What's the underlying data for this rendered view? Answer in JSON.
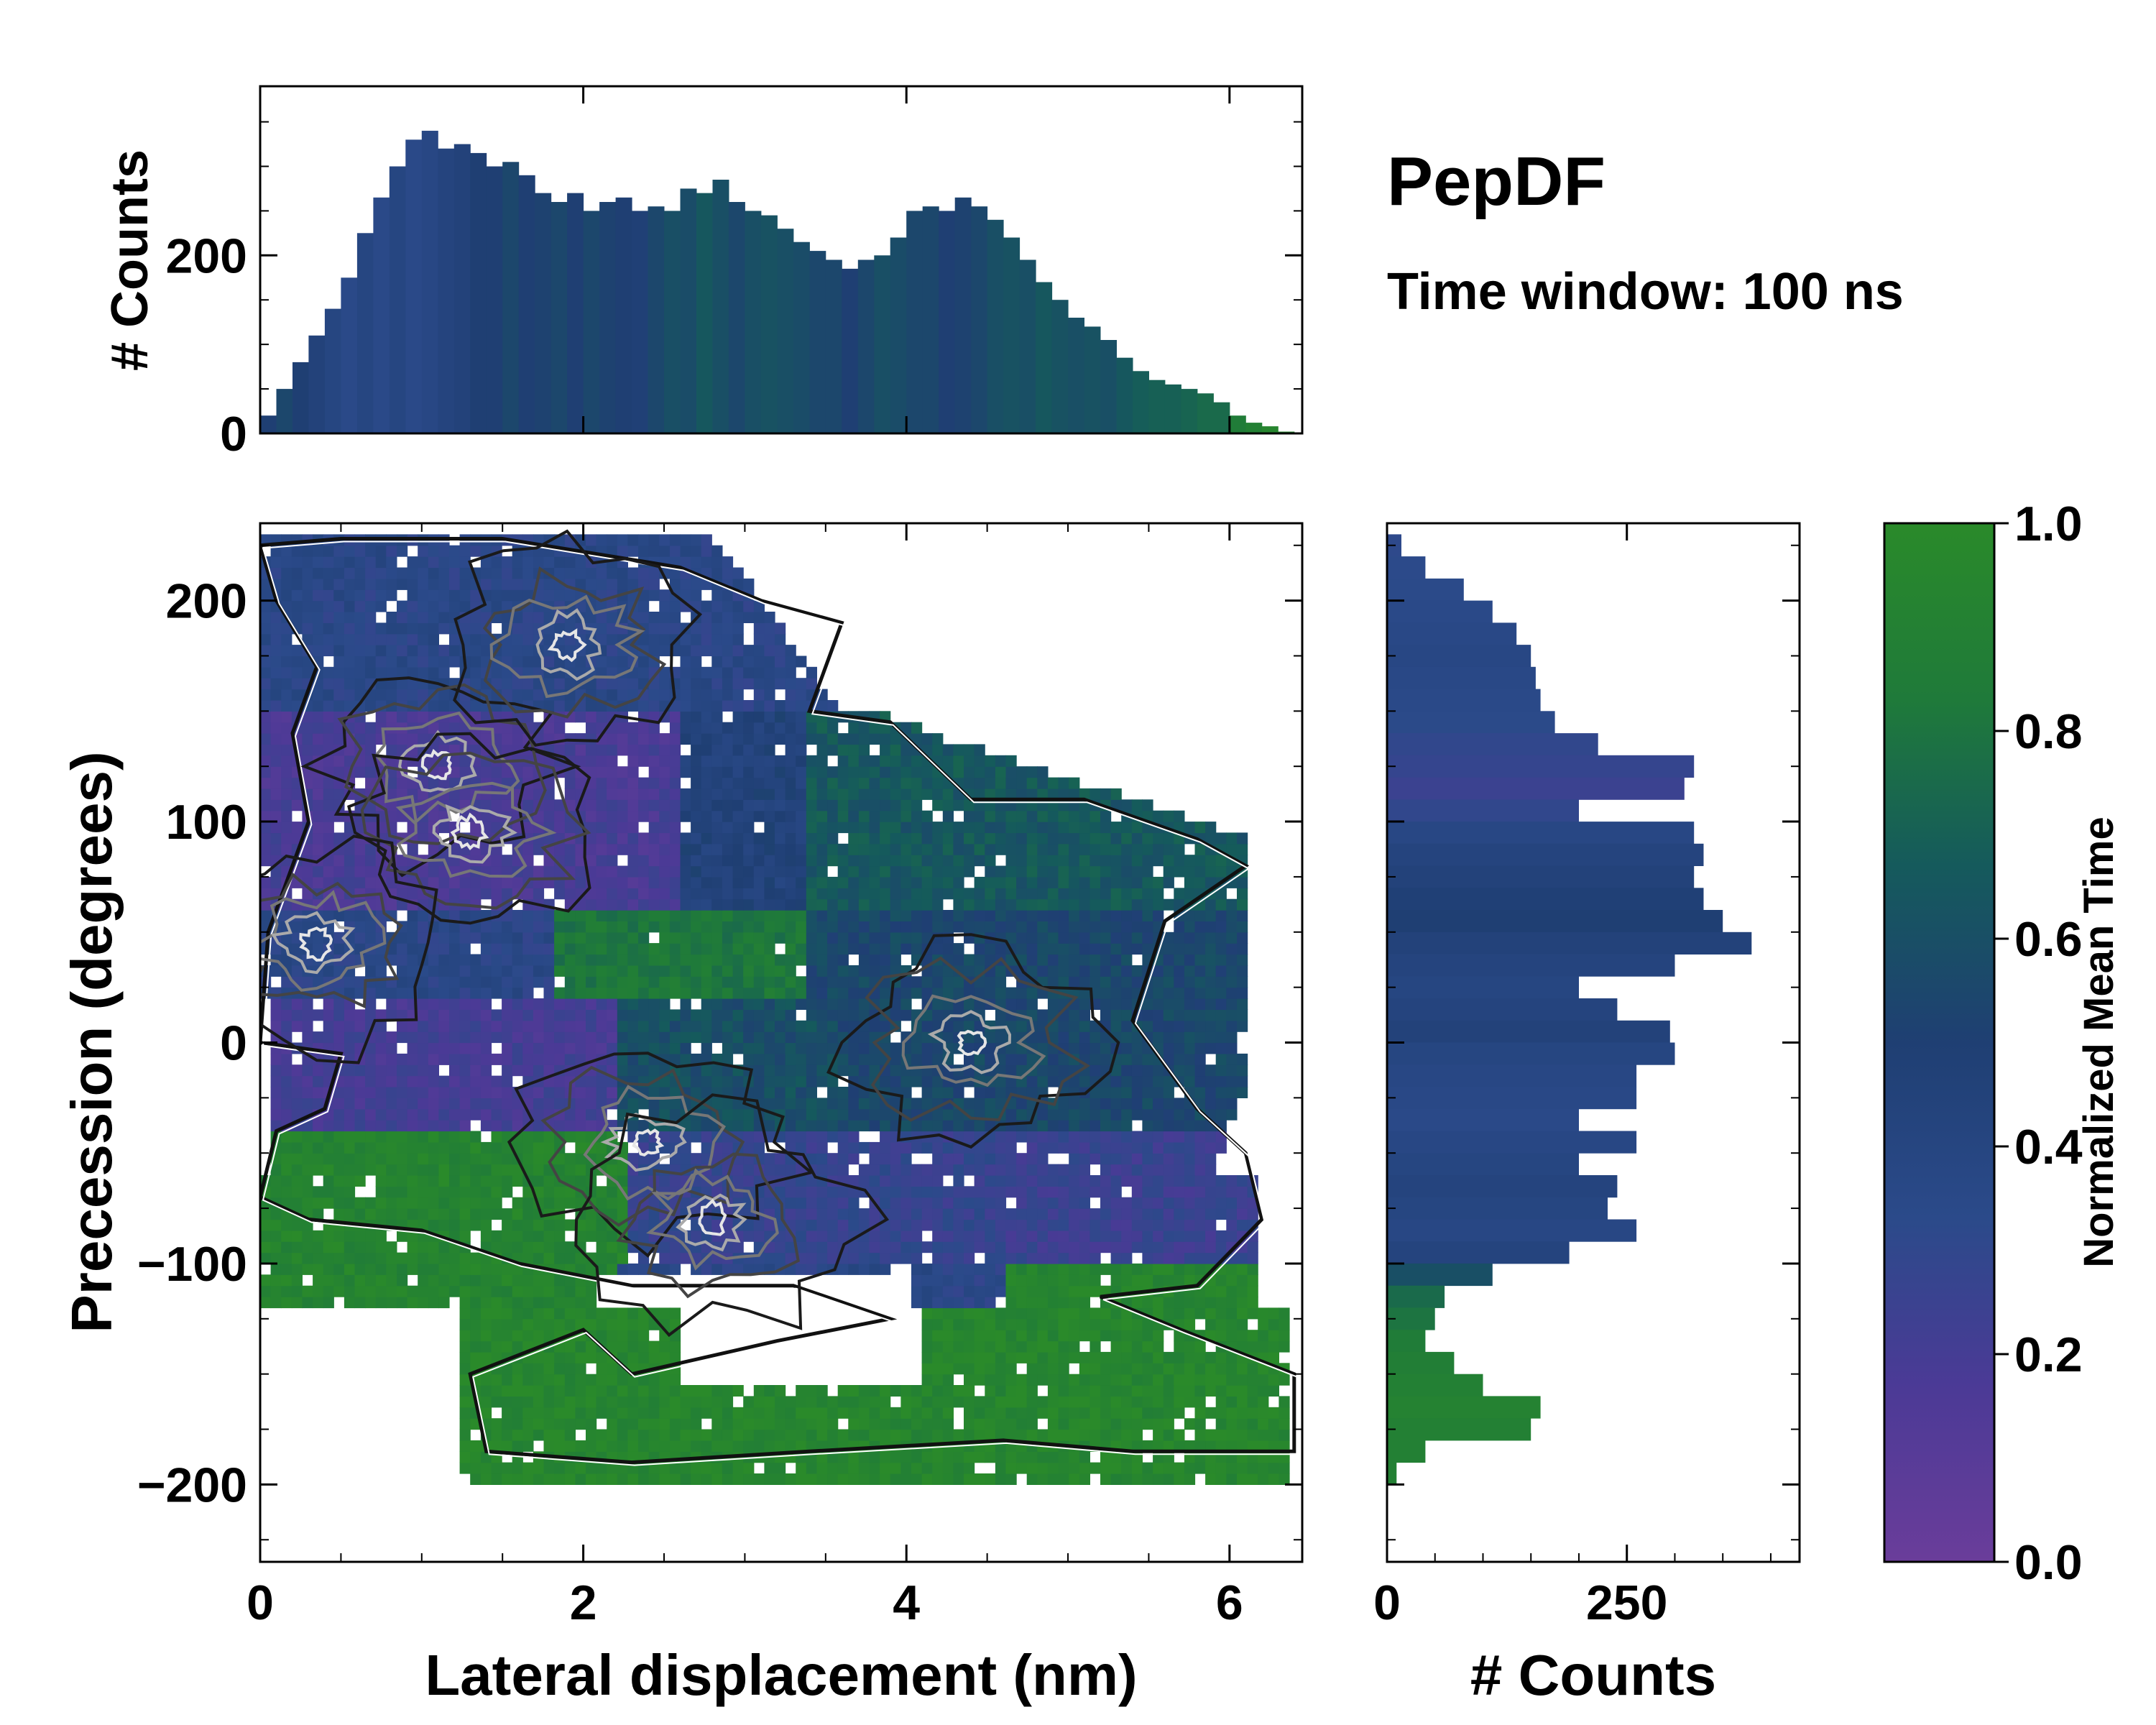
{
  "figure": {
    "title": "PepDF",
    "subtitle": "Time window: 100 ns"
  },
  "chart_data": [
    {
      "id": "joint",
      "type": "heatmap",
      "xlabel": "Lateral displacement (nm)",
      "ylabel": "Precession (degrees)",
      "xlim": [
        0,
        6.45
      ],
      "ylim": [
        -235,
        235
      ],
      "xticks": [
        0,
        2,
        4,
        6
      ],
      "yticks": [
        -200,
        -100,
        0,
        100,
        200
      ],
      "ytick_labels": [
        "−200",
        "−100",
        "0",
        "100",
        "200"
      ],
      "colorbar": {
        "label": "Normalized Mean Time",
        "range": [
          0,
          1
        ],
        "ticks": [
          0.0,
          0.2,
          0.4,
          0.6,
          0.8,
          1.0
        ],
        "tick_labels": [
          "0.0",
          "0.2",
          "0.4",
          "0.6",
          "0.8",
          "1.0"
        ],
        "stops": [
          "#6a3d9a",
          "#4b3a96",
          "#2b4a8a",
          "#1f3f73",
          "#155a5c",
          "#1f7a3a",
          "#2a8a2a"
        ]
      },
      "regions": [
        {
          "name": "upper-blue",
          "x": [
            0.1,
            3.6
          ],
          "y": [
            40,
            225
          ],
          "time": 0.35
        },
        {
          "name": "upper-purple",
          "x": [
            0.3,
            2.6
          ],
          "y": [
            60,
            150
          ],
          "time": 0.15
        },
        {
          "name": "middle-teal",
          "x": [
            2.8,
            6.1
          ],
          "y": [
            -50,
            110
          ],
          "time": 0.62
        },
        {
          "name": "middle-green",
          "x": [
            1.8,
            3.4
          ],
          "y": [
            0,
            60
          ],
          "time": 0.85
        },
        {
          "name": "lower-purple",
          "x": [
            0.3,
            2.3
          ],
          "y": [
            -40,
            20
          ],
          "time": 0.18
        },
        {
          "name": "lower-blue",
          "x": [
            2.2,
            6.2
          ],
          "y": [
            -110,
            -20
          ],
          "time": 0.3
        },
        {
          "name": "bottom-green",
          "x": [
            0.0,
            2.4
          ],
          "y": [
            -100,
            -40
          ],
          "time": 0.93
        },
        {
          "name": "far-bottom-green",
          "x": [
            1.3,
            6.4
          ],
          "y": [
            -200,
            -120
          ],
          "time": 0.95
        }
      ],
      "density_peaks": [
        {
          "x": 1.1,
          "y": 125
        },
        {
          "x": 1.3,
          "y": 95
        },
        {
          "x": 0.35,
          "y": 45
        },
        {
          "x": 4.4,
          "y": 0
        },
        {
          "x": 2.4,
          "y": -45
        },
        {
          "x": 2.8,
          "y": -80
        },
        {
          "x": 1.9,
          "y": 180
        }
      ]
    },
    {
      "id": "top-histogram",
      "type": "bar",
      "ylabel": "# Counts",
      "ylim": [
        0,
        390
      ],
      "yticks": [
        0,
        200
      ],
      "x_centers": [
        0.05,
        0.15,
        0.25,
        0.35,
        0.45,
        0.55,
        0.65,
        0.75,
        0.85,
        0.95,
        1.05,
        1.15,
        1.25,
        1.35,
        1.45,
        1.55,
        1.65,
        1.75,
        1.85,
        1.95,
        2.05,
        2.15,
        2.25,
        2.35,
        2.45,
        2.55,
        2.65,
        2.75,
        2.85,
        2.95,
        3.05,
        3.15,
        3.25,
        3.35,
        3.45,
        3.55,
        3.65,
        3.75,
        3.85,
        3.95,
        4.05,
        4.15,
        4.25,
        4.35,
        4.45,
        4.55,
        4.65,
        4.75,
        4.85,
        4.95,
        5.05,
        5.15,
        5.25,
        5.35,
        5.45,
        5.55,
        5.65,
        5.75,
        5.85,
        5.95,
        6.05,
        6.15,
        6.25,
        6.35
      ],
      "values": [
        20,
        50,
        80,
        110,
        140,
        175,
        225,
        265,
        300,
        330,
        340,
        320,
        325,
        315,
        300,
        305,
        290,
        270,
        260,
        270,
        250,
        260,
        265,
        250,
        255,
        250,
        275,
        270,
        285,
        260,
        250,
        245,
        230,
        215,
        205,
        195,
        185,
        195,
        200,
        220,
        250,
        255,
        250,
        265,
        255,
        240,
        220,
        195,
        170,
        150,
        130,
        120,
        105,
        85,
        70,
        60,
        55,
        50,
        45,
        35,
        20,
        12,
        8,
        2
      ],
      "time": [
        0.5,
        0.55,
        0.5,
        0.45,
        0.4,
        0.35,
        0.4,
        0.35,
        0.4,
        0.35,
        0.38,
        0.42,
        0.45,
        0.5,
        0.5,
        0.55,
        0.5,
        0.52,
        0.55,
        0.5,
        0.55,
        0.52,
        0.5,
        0.48,
        0.55,
        0.6,
        0.58,
        0.65,
        0.6,
        0.55,
        0.6,
        0.62,
        0.6,
        0.58,
        0.55,
        0.55,
        0.5,
        0.55,
        0.6,
        0.58,
        0.55,
        0.55,
        0.5,
        0.52,
        0.55,
        0.6,
        0.62,
        0.6,
        0.65,
        0.62,
        0.6,
        0.62,
        0.6,
        0.65,
        0.68,
        0.7,
        0.7,
        0.72,
        0.75,
        0.75,
        0.85,
        0.9,
        0.95,
        0.95
      ]
    },
    {
      "id": "right-histogram",
      "type": "bar",
      "xlabel": "# Counts",
      "xlim": [
        0,
        430
      ],
      "xticks": [
        0,
        250
      ],
      "y_centers": [
        225,
        215,
        205,
        195,
        185,
        175,
        165,
        155,
        145,
        135,
        125,
        115,
        105,
        95,
        85,
        75,
        65,
        55,
        45,
        35,
        25,
        15,
        5,
        -5,
        -15,
        -25,
        -35,
        -45,
        -55,
        -65,
        -75,
        -85,
        -95,
        -105,
        -115,
        -125,
        -135,
        -145,
        -155,
        -165,
        -175,
        -185,
        -195
      ],
      "values": [
        15,
        40,
        80,
        110,
        135,
        150,
        155,
        160,
        175,
        220,
        320,
        310,
        200,
        320,
        330,
        320,
        330,
        350,
        380,
        300,
        200,
        240,
        295,
        300,
        260,
        260,
        200,
        260,
        200,
        240,
        230,
        260,
        190,
        110,
        60,
        50,
        40,
        70,
        100,
        160,
        150,
        40,
        10
      ],
      "time": [
        0.32,
        0.33,
        0.34,
        0.35,
        0.36,
        0.38,
        0.36,
        0.35,
        0.34,
        0.3,
        0.28,
        0.25,
        0.3,
        0.38,
        0.42,
        0.45,
        0.48,
        0.5,
        0.45,
        0.42,
        0.4,
        0.42,
        0.45,
        0.4,
        0.38,
        0.36,
        0.35,
        0.38,
        0.4,
        0.42,
        0.4,
        0.38,
        0.42,
        0.6,
        0.75,
        0.8,
        0.85,
        0.88,
        0.9,
        0.92,
        0.9,
        0.9,
        0.9
      ]
    }
  ]
}
